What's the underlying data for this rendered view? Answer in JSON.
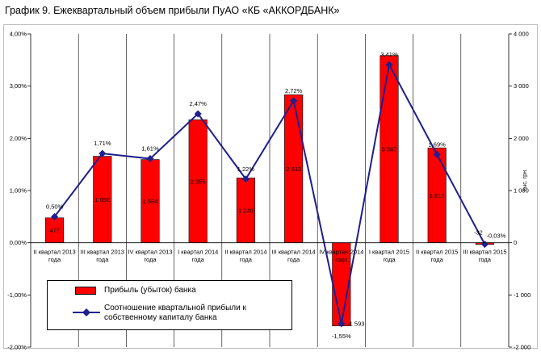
{
  "chart_data": {
    "type": "bar+line",
    "title": "График 9. Ежеквартальный объем прибыли ПуАО «КБ «АККОРДБАНК»",
    "categories": [
      [
        "II квартал 2013",
        "года"
      ],
      [
        "III квартал 2013",
        "года"
      ],
      [
        "IV квартал 2013",
        "года"
      ],
      [
        "I квартал 2014",
        "года"
      ],
      [
        "II квартал 2014",
        "года"
      ],
      [
        "III квартал 2014",
        "года"
      ],
      [
        "IV квартал 2014",
        "года"
      ],
      [
        "I квартал 2015",
        "года"
      ],
      [
        "II квартал 2015",
        "года"
      ],
      [
        "III квартал 2015",
        "года"
      ]
    ],
    "series": [
      {
        "name": "Прибыль (убыток) банка",
        "kind": "bar",
        "axis": "right",
        "color": "#ff0000",
        "values": [
          477,
          1656,
          1594,
          2355,
          1240,
          2833,
          -1593,
          3587,
          1817,
          -32
        ],
        "labels": [
          "477",
          "1 656",
          "1 594",
          "2 355",
          "1 240",
          "2 833",
          "-1 593",
          "3 587",
          "1 817",
          "-32"
        ]
      },
      {
        "name": "Соотношение квартальной прибыли к собственному капиталу банка",
        "kind": "line",
        "axis": "left",
        "color": "#1f1f8f",
        "values": [
          0.5,
          1.71,
          1.61,
          2.47,
          1.22,
          2.72,
          -1.55,
          3.41,
          1.69,
          -0.03
        ],
        "labels": [
          "0,50%",
          "1,71%",
          "1,61%",
          "2,47%",
          "1,22%",
          "2,72%",
          "-1,55%",
          "3,41%",
          "1,69%",
          "-0,03%"
        ]
      }
    ],
    "left_axis": {
      "ylim": [
        -2,
        4
      ],
      "ticks": [
        4,
        3,
        2,
        1,
        0,
        -1,
        -2
      ],
      "tick_labels": [
        "4,00%",
        "3,00%",
        "2,00%",
        "1,00%",
        "0,00%",
        "-1,00%",
        "-2,00%"
      ]
    },
    "right_axis": {
      "label": "тыс. грн.",
      "ylim": [
        -2000,
        4000
      ],
      "ticks": [
        4000,
        3000,
        2000,
        1000,
        0,
        -1000,
        -2000
      ],
      "tick_labels": [
        "4 000",
        "3 000",
        "2 000",
        "1 000",
        "0",
        "-1 000",
        "-2 000"
      ]
    },
    "legend_placement": "bottom-left",
    "grid": "vertical"
  }
}
